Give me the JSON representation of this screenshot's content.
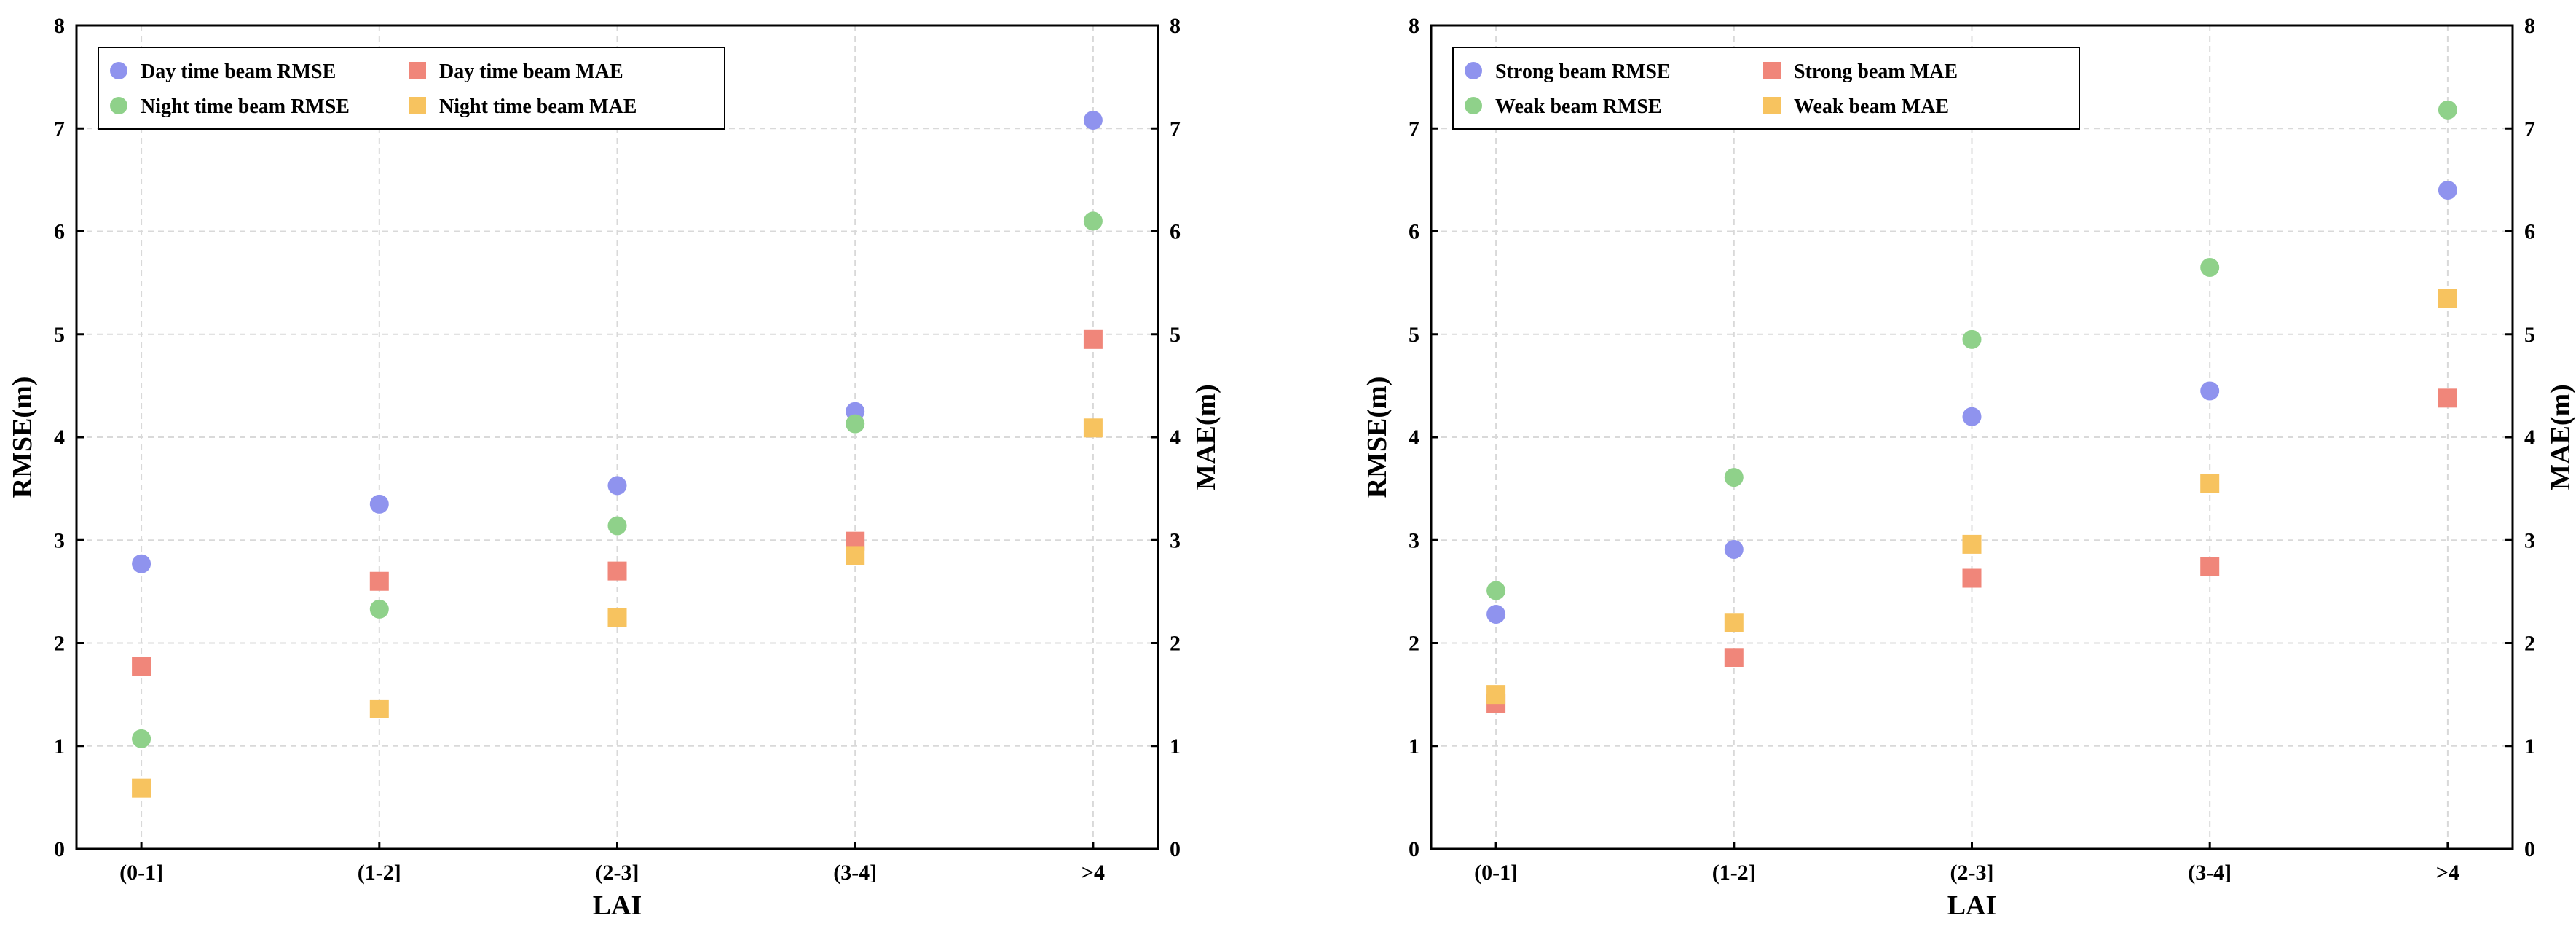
{
  "chart_data": [
    {
      "type": "scatter",
      "categories": [
        "(0-1]",
        "(1-2]",
        "(2-3]",
        "(3-4]",
        ">4"
      ],
      "xlabel": "LAI",
      "ylabel": "RMSE(m)",
      "ylabel_right": "MAE(m)",
      "ylim": [
        0,
        8
      ],
      "yticks": [
        "0",
        "1",
        "2",
        "3",
        "4",
        "5",
        "6",
        "7",
        "8"
      ],
      "grid": true,
      "legend_position": "top-left",
      "series": [
        {
          "name": "Day time beam RMSE",
          "marker": "circle",
          "axis": "left",
          "color": "#8f93ee",
          "values": [
            2.77,
            3.35,
            3.53,
            4.25,
            7.08
          ]
        },
        {
          "name": "Night time beam RMSE",
          "marker": "circle",
          "axis": "left",
          "color": "#8fd18a",
          "values": [
            1.07,
            2.33,
            3.14,
            4.13,
            6.1
          ]
        },
        {
          "name": "Day time beam MAE",
          "marker": "square",
          "axis": "right",
          "color": "#f0867a",
          "values": [
            1.77,
            2.6,
            2.7,
            2.99,
            4.95
          ]
        },
        {
          "name": "Night time beam MAE",
          "marker": "square",
          "axis": "right",
          "color": "#f7c35f",
          "values": [
            0.59,
            1.36,
            2.25,
            2.85,
            4.09
          ]
        }
      ]
    },
    {
      "type": "scatter",
      "categories": [
        "(0-1]",
        "(1-2]",
        "(2-3]",
        "(3-4]",
        ">4"
      ],
      "xlabel": "LAI",
      "ylabel": "RMSE(m)",
      "ylabel_right": "MAE(m)",
      "ylim": [
        0,
        8
      ],
      "yticks": [
        "0",
        "1",
        "2",
        "3",
        "4",
        "5",
        "6",
        "7",
        "8"
      ],
      "grid": true,
      "legend_position": "top-left",
      "series": [
        {
          "name": "Strong beam RMSE",
          "marker": "circle",
          "axis": "left",
          "color": "#8f93ee",
          "values": [
            2.28,
            2.91,
            4.2,
            4.45,
            6.4
          ]
        },
        {
          "name": "Weak beam RMSE",
          "marker": "circle",
          "axis": "left",
          "color": "#8fd18a",
          "values": [
            2.51,
            3.61,
            4.95,
            5.65,
            7.18
          ]
        },
        {
          "name": "Strong beam MAE",
          "marker": "square",
          "axis": "right",
          "color": "#f0867a",
          "values": [
            1.41,
            1.86,
            2.63,
            2.74,
            4.38
          ]
        },
        {
          "name": "Weak beam MAE",
          "marker": "square",
          "axis": "right",
          "color": "#f7c35f",
          "values": [
            1.5,
            2.2,
            2.96,
            3.55,
            5.35
          ]
        }
      ]
    }
  ]
}
